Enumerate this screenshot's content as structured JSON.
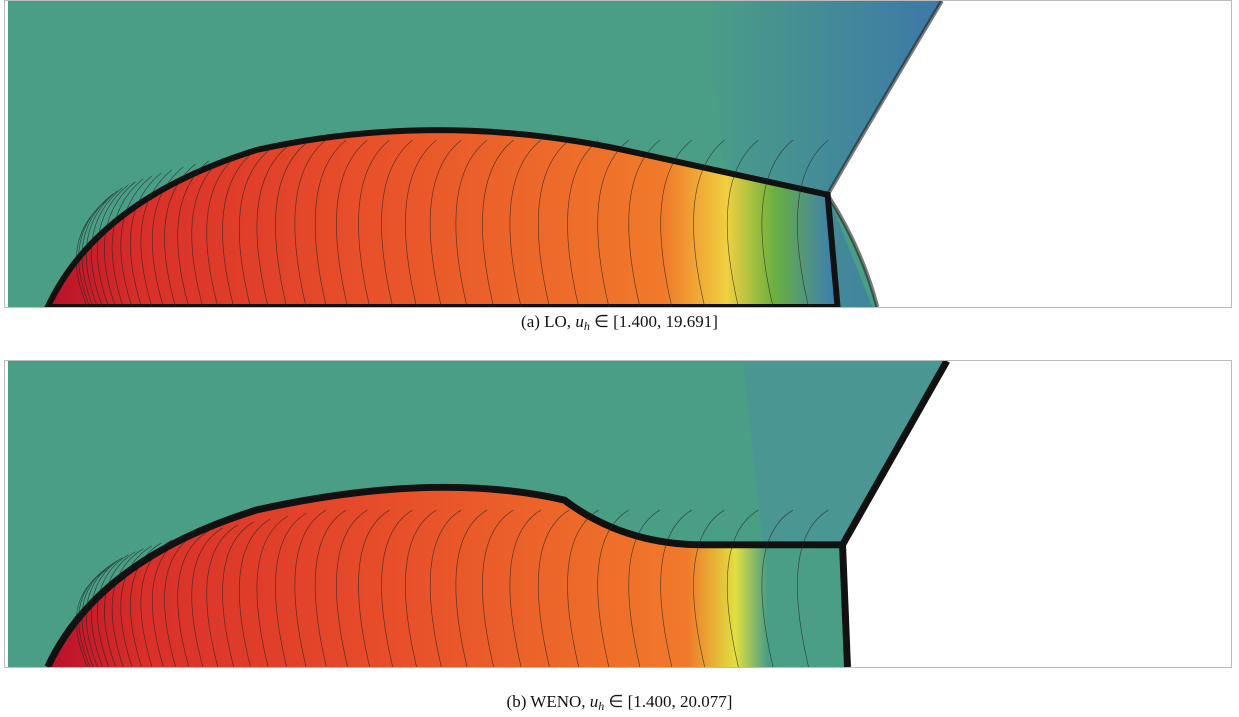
{
  "figure": {
    "panels": [
      {
        "prefix": "(a) LO,",
        "var": "u",
        "sub": "h",
        "rest": "∈ [1.400, 19.691]"
      },
      {
        "prefix": "(b) WENO,",
        "var": "u",
        "sub": "h",
        "rest": "∈ [1.400, 20.077]"
      }
    ]
  }
}
